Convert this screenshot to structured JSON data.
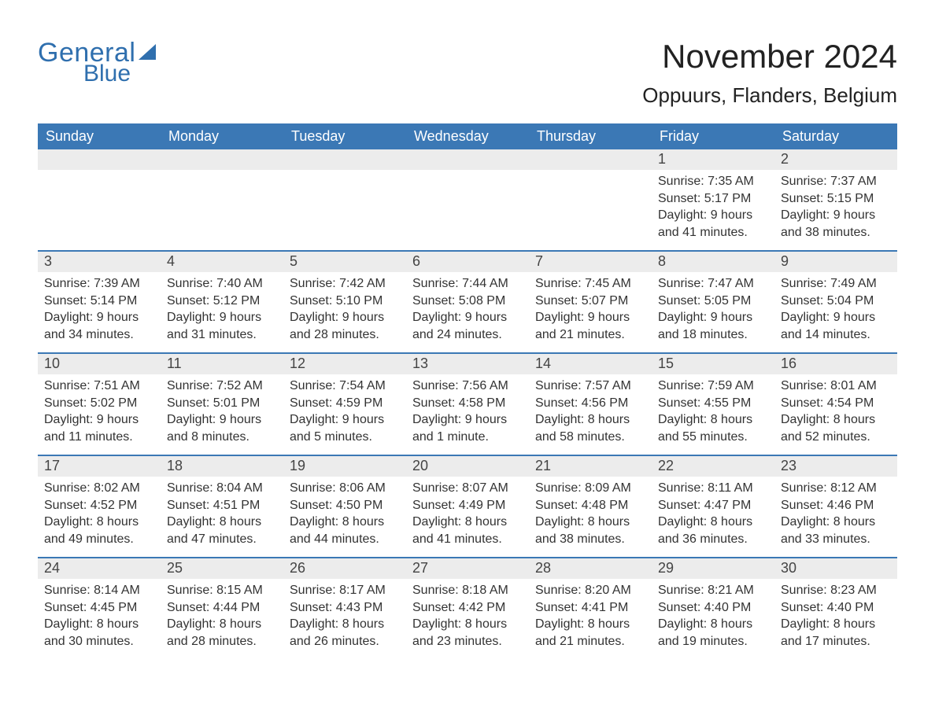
{
  "logo": {
    "word1": "General",
    "word2": "Blue",
    "color": "#2f6fae"
  },
  "title": "November 2024",
  "location": "Oppuurs, Flanders, Belgium",
  "colors": {
    "header_bg": "#3b78b5",
    "header_text": "#ffffff",
    "daynum_bg": "#ececec",
    "week_border": "#3b78b5",
    "body_text": "#333333",
    "page_bg": "#ffffff"
  },
  "typography": {
    "title_fontsize": 42,
    "location_fontsize": 26,
    "dow_fontsize": 18,
    "daynum_fontsize": 18,
    "body_fontsize": 16
  },
  "calendar": {
    "type": "table",
    "columns": [
      "Sunday",
      "Monday",
      "Tuesday",
      "Wednesday",
      "Thursday",
      "Friday",
      "Saturday"
    ],
    "weeks": [
      [
        {
          "empty": true
        },
        {
          "empty": true
        },
        {
          "empty": true
        },
        {
          "empty": true
        },
        {
          "empty": true
        },
        {
          "num": "1",
          "sunrise": "Sunrise: 7:35 AM",
          "sunset": "Sunset: 5:17 PM",
          "day1": "Daylight: 9 hours",
          "day2": "and 41 minutes."
        },
        {
          "num": "2",
          "sunrise": "Sunrise: 7:37 AM",
          "sunset": "Sunset: 5:15 PM",
          "day1": "Daylight: 9 hours",
          "day2": "and 38 minutes."
        }
      ],
      [
        {
          "num": "3",
          "sunrise": "Sunrise: 7:39 AM",
          "sunset": "Sunset: 5:14 PM",
          "day1": "Daylight: 9 hours",
          "day2": "and 34 minutes."
        },
        {
          "num": "4",
          "sunrise": "Sunrise: 7:40 AM",
          "sunset": "Sunset: 5:12 PM",
          "day1": "Daylight: 9 hours",
          "day2": "and 31 minutes."
        },
        {
          "num": "5",
          "sunrise": "Sunrise: 7:42 AM",
          "sunset": "Sunset: 5:10 PM",
          "day1": "Daylight: 9 hours",
          "day2": "and 28 minutes."
        },
        {
          "num": "6",
          "sunrise": "Sunrise: 7:44 AM",
          "sunset": "Sunset: 5:08 PM",
          "day1": "Daylight: 9 hours",
          "day2": "and 24 minutes."
        },
        {
          "num": "7",
          "sunrise": "Sunrise: 7:45 AM",
          "sunset": "Sunset: 5:07 PM",
          "day1": "Daylight: 9 hours",
          "day2": "and 21 minutes."
        },
        {
          "num": "8",
          "sunrise": "Sunrise: 7:47 AM",
          "sunset": "Sunset: 5:05 PM",
          "day1": "Daylight: 9 hours",
          "day2": "and 18 minutes."
        },
        {
          "num": "9",
          "sunrise": "Sunrise: 7:49 AM",
          "sunset": "Sunset: 5:04 PM",
          "day1": "Daylight: 9 hours",
          "day2": "and 14 minutes."
        }
      ],
      [
        {
          "num": "10",
          "sunrise": "Sunrise: 7:51 AM",
          "sunset": "Sunset: 5:02 PM",
          "day1": "Daylight: 9 hours",
          "day2": "and 11 minutes."
        },
        {
          "num": "11",
          "sunrise": "Sunrise: 7:52 AM",
          "sunset": "Sunset: 5:01 PM",
          "day1": "Daylight: 9 hours",
          "day2": "and 8 minutes."
        },
        {
          "num": "12",
          "sunrise": "Sunrise: 7:54 AM",
          "sunset": "Sunset: 4:59 PM",
          "day1": "Daylight: 9 hours",
          "day2": "and 5 minutes."
        },
        {
          "num": "13",
          "sunrise": "Sunrise: 7:56 AM",
          "sunset": "Sunset: 4:58 PM",
          "day1": "Daylight: 9 hours",
          "day2": "and 1 minute."
        },
        {
          "num": "14",
          "sunrise": "Sunrise: 7:57 AM",
          "sunset": "Sunset: 4:56 PM",
          "day1": "Daylight: 8 hours",
          "day2": "and 58 minutes."
        },
        {
          "num": "15",
          "sunrise": "Sunrise: 7:59 AM",
          "sunset": "Sunset: 4:55 PM",
          "day1": "Daylight: 8 hours",
          "day2": "and 55 minutes."
        },
        {
          "num": "16",
          "sunrise": "Sunrise: 8:01 AM",
          "sunset": "Sunset: 4:54 PM",
          "day1": "Daylight: 8 hours",
          "day2": "and 52 minutes."
        }
      ],
      [
        {
          "num": "17",
          "sunrise": "Sunrise: 8:02 AM",
          "sunset": "Sunset: 4:52 PM",
          "day1": "Daylight: 8 hours",
          "day2": "and 49 minutes."
        },
        {
          "num": "18",
          "sunrise": "Sunrise: 8:04 AM",
          "sunset": "Sunset: 4:51 PM",
          "day1": "Daylight: 8 hours",
          "day2": "and 47 minutes."
        },
        {
          "num": "19",
          "sunrise": "Sunrise: 8:06 AM",
          "sunset": "Sunset: 4:50 PM",
          "day1": "Daylight: 8 hours",
          "day2": "and 44 minutes."
        },
        {
          "num": "20",
          "sunrise": "Sunrise: 8:07 AM",
          "sunset": "Sunset: 4:49 PM",
          "day1": "Daylight: 8 hours",
          "day2": "and 41 minutes."
        },
        {
          "num": "21",
          "sunrise": "Sunrise: 8:09 AM",
          "sunset": "Sunset: 4:48 PM",
          "day1": "Daylight: 8 hours",
          "day2": "and 38 minutes."
        },
        {
          "num": "22",
          "sunrise": "Sunrise: 8:11 AM",
          "sunset": "Sunset: 4:47 PM",
          "day1": "Daylight: 8 hours",
          "day2": "and 36 minutes."
        },
        {
          "num": "23",
          "sunrise": "Sunrise: 8:12 AM",
          "sunset": "Sunset: 4:46 PM",
          "day1": "Daylight: 8 hours",
          "day2": "and 33 minutes."
        }
      ],
      [
        {
          "num": "24",
          "sunrise": "Sunrise: 8:14 AM",
          "sunset": "Sunset: 4:45 PM",
          "day1": "Daylight: 8 hours",
          "day2": "and 30 minutes."
        },
        {
          "num": "25",
          "sunrise": "Sunrise: 8:15 AM",
          "sunset": "Sunset: 4:44 PM",
          "day1": "Daylight: 8 hours",
          "day2": "and 28 minutes."
        },
        {
          "num": "26",
          "sunrise": "Sunrise: 8:17 AM",
          "sunset": "Sunset: 4:43 PM",
          "day1": "Daylight: 8 hours",
          "day2": "and 26 minutes."
        },
        {
          "num": "27",
          "sunrise": "Sunrise: 8:18 AM",
          "sunset": "Sunset: 4:42 PM",
          "day1": "Daylight: 8 hours",
          "day2": "and 23 minutes."
        },
        {
          "num": "28",
          "sunrise": "Sunrise: 8:20 AM",
          "sunset": "Sunset: 4:41 PM",
          "day1": "Daylight: 8 hours",
          "day2": "and 21 minutes."
        },
        {
          "num": "29",
          "sunrise": "Sunrise: 8:21 AM",
          "sunset": "Sunset: 4:40 PM",
          "day1": "Daylight: 8 hours",
          "day2": "and 19 minutes."
        },
        {
          "num": "30",
          "sunrise": "Sunrise: 8:23 AM",
          "sunset": "Sunset: 4:40 PM",
          "day1": "Daylight: 8 hours",
          "day2": "and 17 minutes."
        }
      ]
    ]
  }
}
